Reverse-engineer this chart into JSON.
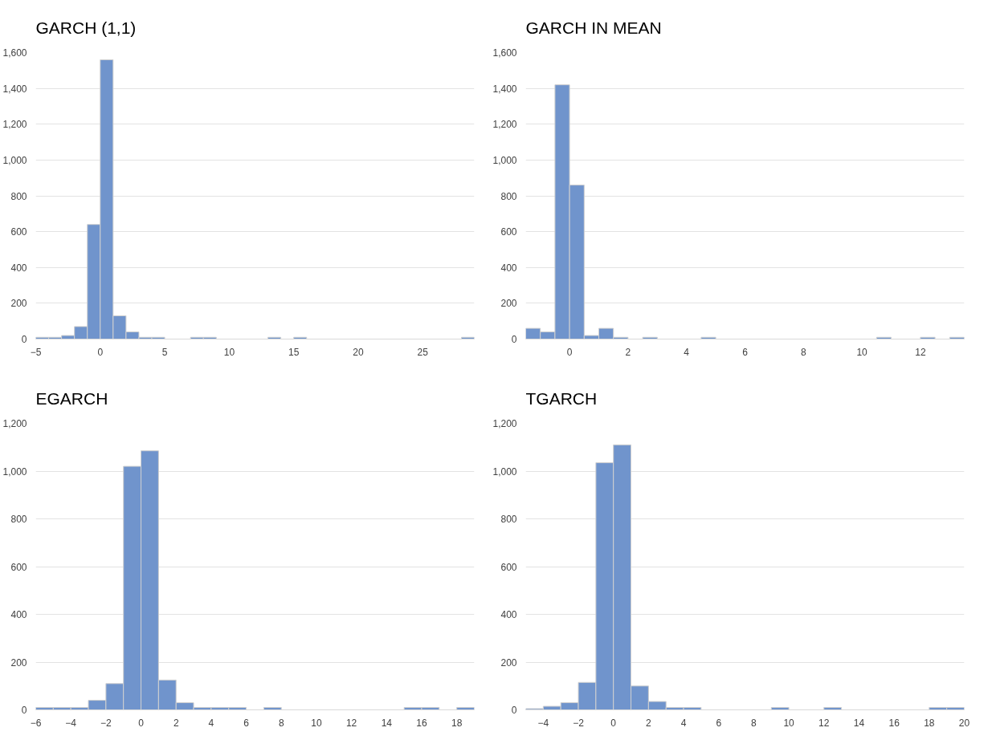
{
  "chart_data": [
    {
      "type": "histogram",
      "title": "GARCH (1,1)",
      "color": "#7094cc",
      "bins": [
        -5,
        -4,
        -3,
        -2,
        -1,
        0,
        1,
        2,
        3,
        4,
        5,
        6,
        7,
        8,
        9,
        10,
        11,
        12,
        13,
        14,
        15,
        16,
        17,
        18,
        19,
        20,
        21,
        22,
        23,
        24,
        25,
        26,
        27,
        28,
        29
      ],
      "values": [
        10,
        10,
        20,
        70,
        640,
        1560,
        130,
        40,
        10,
        10,
        0,
        0,
        10,
        10,
        0,
        0,
        0,
        0,
        10,
        0,
        10,
        0,
        0,
        0,
        0,
        0,
        0,
        0,
        0,
        0,
        0,
        0,
        0,
        10
      ],
      "xlim": [
        -5,
        29
      ],
      "xticks": [
        -5,
        0,
        5,
        10,
        15,
        20,
        25
      ],
      "ylim": [
        0,
        1600
      ],
      "yticks": [
        0,
        200,
        400,
        600,
        800,
        {
          "value": 1000,
          "label": "1,000"
        },
        {
          "value": 1200,
          "label": "1,200"
        },
        {
          "value": 1400,
          "label": "1,400"
        },
        {
          "value": 1600,
          "label": "1,600"
        }
      ],
      "grid": "y"
    },
    {
      "type": "histogram",
      "title": "GARCH IN MEAN",
      "color": "#7094cc",
      "bins": [
        -1.5,
        -1,
        -0.5,
        0,
        0.5,
        1,
        1.5,
        2,
        2.5,
        3,
        3.5,
        4,
        4.5,
        5,
        5.5,
        6,
        6.5,
        7,
        7.5,
        8,
        8.5,
        9,
        9.5,
        10,
        10.5,
        11,
        11.5,
        12,
        12.5,
        13,
        13.5
      ],
      "values": [
        60,
        40,
        1420,
        860,
        20,
        60,
        10,
        0,
        10,
        0,
        0,
        0,
        10,
        0,
        0,
        0,
        0,
        0,
        0,
        0,
        0,
        0,
        0,
        0,
        10,
        0,
        0,
        10,
        0,
        10
      ],
      "xlim": [
        -1.5,
        13.5
      ],
      "xticks": [
        0,
        2,
        4,
        6,
        8,
        10,
        12
      ],
      "ylim": [
        0,
        1600
      ],
      "yticks": [
        0,
        200,
        400,
        600,
        800,
        {
          "value": 1000,
          "label": "1,000"
        },
        {
          "value": 1200,
          "label": "1,200"
        },
        {
          "value": 1400,
          "label": "1,400"
        },
        {
          "value": 1600,
          "label": "1,600"
        }
      ],
      "grid": "y"
    },
    {
      "type": "histogram",
      "title": "EGARCH",
      "color": "#7094cc",
      "bins": [
        -6,
        -5,
        -4,
        -3,
        -2,
        -1,
        0,
        1,
        2,
        3,
        4,
        5,
        6,
        7,
        8,
        9,
        10,
        11,
        12,
        13,
        14,
        15,
        16,
        17,
        18,
        19
      ],
      "values": [
        10,
        10,
        10,
        40,
        110,
        1020,
        1085,
        125,
        30,
        10,
        10,
        10,
        0,
        10,
        0,
        0,
        0,
        0,
        0,
        0,
        0,
        10,
        10,
        0,
        10
      ],
      "xlim": [
        -6,
        19
      ],
      "xticks": [
        -6,
        -4,
        -2,
        0,
        2,
        4,
        6,
        8,
        10,
        12,
        14,
        16,
        18
      ],
      "ylim": [
        0,
        1200
      ],
      "yticks": [
        0,
        200,
        400,
        600,
        800,
        {
          "value": 1000,
          "label": "1,000"
        },
        {
          "value": 1200,
          "label": "1,200"
        }
      ],
      "grid": "y"
    },
    {
      "type": "histogram",
      "title": "TGARCH",
      "color": "#7094cc",
      "bins": [
        -5,
        -4,
        -3,
        -2,
        -1,
        0,
        1,
        2,
        3,
        4,
        5,
        6,
        7,
        8,
        9,
        10,
        11,
        12,
        13,
        14,
        15,
        16,
        17,
        18,
        19,
        20
      ],
      "values": [
        5,
        15,
        30,
        115,
        1035,
        1110,
        100,
        35,
        10,
        10,
        0,
        0,
        0,
        0,
        10,
        0,
        0,
        10,
        0,
        0,
        0,
        0,
        0,
        10,
        10
      ],
      "xlim": [
        -5,
        20
      ],
      "xticks": [
        -4,
        -2,
        0,
        2,
        4,
        6,
        8,
        10,
        12,
        14,
        16,
        18,
        20
      ],
      "ylim": [
        0,
        1200
      ],
      "yticks": [
        0,
        200,
        400,
        600,
        800,
        {
          "value": 1000,
          "label": "1,000"
        },
        {
          "value": 1200,
          "label": "1,200"
        }
      ],
      "grid": "y"
    }
  ]
}
